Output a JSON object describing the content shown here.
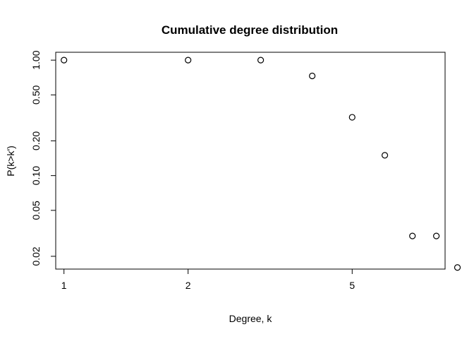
{
  "chart_data": {
    "type": "scatter",
    "title": "Cumulative degree distribution",
    "xlabel": "Degree, k",
    "ylabel": "P(k>k')",
    "xscale": "log",
    "yscale": "log",
    "xlim": [
      0.955,
      8.4
    ],
    "ylim": [
      0.0155,
      1.17
    ],
    "x_ticks": [
      {
        "value": 1,
        "label": "1"
      },
      {
        "value": 2,
        "label": "2"
      },
      {
        "value": 5,
        "label": "5"
      }
    ],
    "y_ticks": [
      {
        "value": 0.02,
        "label": "0.02"
      },
      {
        "value": 0.05,
        "label": "0.05"
      },
      {
        "value": 0.1,
        "label": "0.10"
      },
      {
        "value": 0.2,
        "label": "0.20"
      },
      {
        "value": 0.5,
        "label": "0.50"
      },
      {
        "value": 1.0,
        "label": "1.00"
      }
    ],
    "points": [
      {
        "x": 1,
        "y": 1.0
      },
      {
        "x": 2,
        "y": 1.0
      },
      {
        "x": 3,
        "y": 1.0
      },
      {
        "x": 4,
        "y": 0.73
      },
      {
        "x": 5,
        "y": 0.32
      },
      {
        "x": 6,
        "y": 0.15
      },
      {
        "x": 7,
        "y": 0.03
      },
      {
        "x": 8,
        "y": 0.03
      },
      {
        "x": 9,
        "y": 0.016
      }
    ],
    "grid": false,
    "legend": "none",
    "colors": {
      "foreground": "#000000",
      "background": "#ffffff"
    }
  }
}
